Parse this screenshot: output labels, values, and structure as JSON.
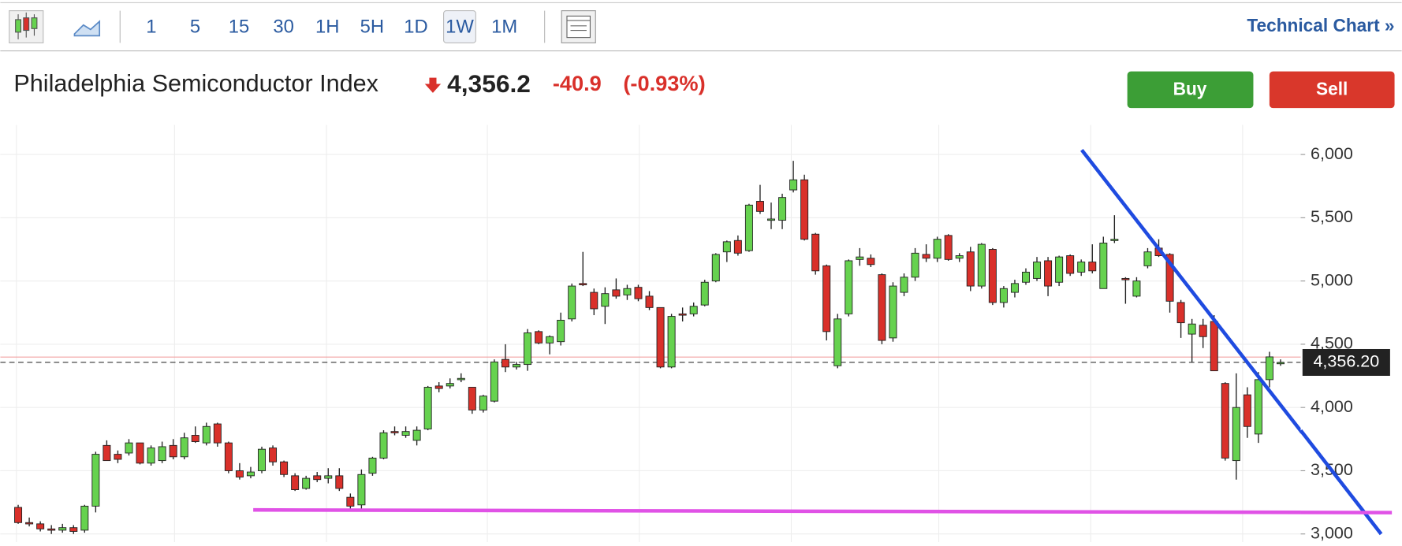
{
  "toolbar": {
    "intervals": [
      "1",
      "5",
      "15",
      "30",
      "1H",
      "5H",
      "1D",
      "1W",
      "1M"
    ],
    "active": "1W",
    "link": "Technical Chart »"
  },
  "header": {
    "name": "Philadelphia Semiconductor Index",
    "price": "4,356.2",
    "change": "-40.9",
    "percent": "(-0.93%)"
  },
  "buttons": {
    "buy": "Buy",
    "sell": "Sell"
  },
  "chart_data": {
    "type": "candlestick",
    "up_color": "#66d24f",
    "down_color": "#d9302a",
    "ylim": [
      2936,
      6233
    ],
    "yticks": [
      {
        "value": 3000,
        "label": "3,000"
      },
      {
        "value": 3500,
        "label": "3,500"
      },
      {
        "value": 4000,
        "label": "4,000"
      },
      {
        "value": 4500,
        "label": "4,500"
      },
      {
        "value": 5000,
        "label": "5,000"
      },
      {
        "value": 5500,
        "label": "5,500"
      },
      {
        "value": 6000,
        "label": "6,000"
      }
    ],
    "last_price": {
      "value": 4356.2,
      "label": "4,356.20"
    },
    "candles": [
      [
        3210,
        3230,
        3080,
        3090
      ],
      [
        3090,
        3130,
        3060,
        3080
      ],
      [
        3080,
        3100,
        3020,
        3040
      ],
      [
        3040,
        3070,
        3000,
        3030
      ],
      [
        3030,
        3080,
        3010,
        3050
      ],
      [
        3050,
        3070,
        3000,
        3020
      ],
      [
        3030,
        3230,
        3010,
        3220
      ],
      [
        3220,
        3650,
        3170,
        3630
      ],
      [
        3700,
        3740,
        3580,
        3580
      ],
      [
        3630,
        3660,
        3560,
        3590
      ],
      [
        3640,
        3750,
        3620,
        3720
      ],
      [
        3720,
        3720,
        3550,
        3560
      ],
      [
        3560,
        3700,
        3540,
        3680
      ],
      [
        3580,
        3730,
        3560,
        3690
      ],
      [
        3700,
        3750,
        3590,
        3610
      ],
      [
        3610,
        3800,
        3590,
        3760
      ],
      [
        3780,
        3850,
        3720,
        3730
      ],
      [
        3720,
        3880,
        3700,
        3850
      ],
      [
        3870,
        3880,
        3690,
        3720
      ],
      [
        3720,
        3730,
        3480,
        3500
      ],
      [
        3500,
        3560,
        3430,
        3450
      ],
      [
        3460,
        3530,
        3440,
        3490
      ],
      [
        3500,
        3690,
        3480,
        3670
      ],
      [
        3680,
        3700,
        3540,
        3570
      ],
      [
        3570,
        3580,
        3450,
        3470
      ],
      [
        3460,
        3480,
        3340,
        3350
      ],
      [
        3360,
        3460,
        3350,
        3440
      ],
      [
        3460,
        3490,
        3410,
        3430
      ],
      [
        3440,
        3520,
        3400,
        3460
      ],
      [
        3460,
        3520,
        3340,
        3360
      ],
      [
        3290,
        3320,
        3180,
        3220
      ],
      [
        3230,
        3510,
        3200,
        3470
      ],
      [
        3480,
        3610,
        3460,
        3600
      ],
      [
        3600,
        3820,
        3590,
        3800
      ],
      [
        3810,
        3850,
        3780,
        3800
      ],
      [
        3780,
        3850,
        3760,
        3810
      ],
      [
        3740,
        3850,
        3700,
        3820
      ],
      [
        3830,
        4170,
        3820,
        4160
      ],
      [
        4170,
        4200,
        4120,
        4150
      ],
      [
        4170,
        4230,
        4150,
        4190
      ],
      [
        4220,
        4270,
        4200,
        4230
      ],
      [
        4160,
        4160,
        3950,
        3980
      ],
      [
        3980,
        4100,
        3960,
        4090
      ],
      [
        4050,
        4380,
        4040,
        4360
      ],
      [
        4380,
        4500,
        4280,
        4320
      ],
      [
        4320,
        4360,
        4300,
        4340
      ],
      [
        4340,
        4620,
        4290,
        4590
      ],
      [
        4600,
        4610,
        4500,
        4510
      ],
      [
        4510,
        4570,
        4420,
        4560
      ],
      [
        4520,
        4750,
        4490,
        4690
      ],
      [
        4700,
        4980,
        4680,
        4960
      ],
      [
        4980,
        5230,
        4960,
        4970
      ],
      [
        4910,
        4940,
        4730,
        4780
      ],
      [
        4800,
        4950,
        4660,
        4900
      ],
      [
        4930,
        5020,
        4860,
        4880
      ],
      [
        4890,
        4970,
        4850,
        4940
      ],
      [
        4950,
        4970,
        4840,
        4860
      ],
      [
        4880,
        4920,
        4770,
        4790
      ],
      [
        4790,
        4790,
        4310,
        4320
      ],
      [
        4320,
        4740,
        4310,
        4720
      ],
      [
        4740,
        4790,
        4680,
        4730
      ],
      [
        4740,
        4830,
        4720,
        4800
      ],
      [
        4810,
        5010,
        4800,
        4990
      ],
      [
        5000,
        5220,
        4990,
        5210
      ],
      [
        5230,
        5320,
        5150,
        5310
      ],
      [
        5320,
        5360,
        5200,
        5220
      ],
      [
        5240,
        5610,
        5230,
        5600
      ],
      [
        5630,
        5760,
        5530,
        5550
      ],
      [
        5490,
        5620,
        5410,
        5490
      ],
      [
        5480,
        5690,
        5410,
        5660
      ],
      [
        5720,
        5950,
        5700,
        5800
      ],
      [
        5800,
        5840,
        5320,
        5330
      ],
      [
        5370,
        5380,
        5050,
        5080
      ],
      [
        5120,
        5130,
        4530,
        4600
      ],
      [
        4330,
        4740,
        4310,
        4700
      ],
      [
        4740,
        5170,
        4720,
        5160
      ],
      [
        5170,
        5260,
        5120,
        5190
      ],
      [
        5180,
        5210,
        5110,
        5130
      ],
      [
        5050,
        5060,
        4500,
        4530
      ],
      [
        4550,
        4990,
        4520,
        4960
      ],
      [
        4910,
        5060,
        4880,
        5030
      ],
      [
        5030,
        5260,
        5000,
        5220
      ],
      [
        5210,
        5290,
        5150,
        5180
      ],
      [
        5180,
        5350,
        5150,
        5330
      ],
      [
        5360,
        5370,
        5160,
        5170
      ],
      [
        5180,
        5220,
        5150,
        5200
      ],
      [
        5230,
        5270,
        4920,
        4960
      ],
      [
        4960,
        5300,
        4940,
        5290
      ],
      [
        5250,
        5260,
        4810,
        4830
      ],
      [
        4830,
        4960,
        4790,
        4940
      ],
      [
        4910,
        5010,
        4870,
        4980
      ],
      [
        4990,
        5100,
        4970,
        5070
      ],
      [
        5020,
        5190,
        5000,
        5150
      ],
      [
        5160,
        5190,
        4880,
        4960
      ],
      [
        4990,
        5200,
        4960,
        5190
      ],
      [
        5200,
        5210,
        5040,
        5060
      ],
      [
        5070,
        5170,
        5040,
        5150
      ],
      [
        5150,
        5290,
        5060,
        5080
      ],
      [
        4940,
        5350,
        4940,
        5300
      ],
      [
        5320,
        5520,
        5300,
        5330
      ],
      [
        5020,
        5030,
        4820,
        5010
      ],
      [
        4880,
        5030,
        4870,
        5000
      ],
      [
        5120,
        5260,
        5100,
        5230
      ],
      [
        5260,
        5330,
        5190,
        5200
      ],
      [
        5210,
        5220,
        4750,
        4840
      ],
      [
        4830,
        4850,
        4550,
        4670
      ],
      [
        4580,
        4700,
        4360,
        4660
      ],
      [
        4650,
        4700,
        4470,
        4560
      ],
      [
        4680,
        4730,
        4290,
        4290
      ],
      [
        4190,
        4200,
        3580,
        3600
      ],
      [
        3580,
        4270,
        3430,
        4000
      ],
      [
        4100,
        4160,
        3760,
        3850
      ],
      [
        3790,
        4280,
        3720,
        4220
      ],
      [
        4220,
        4440,
        4160,
        4400
      ],
      [
        4356,
        4380,
        4330,
        4356
      ]
    ]
  }
}
